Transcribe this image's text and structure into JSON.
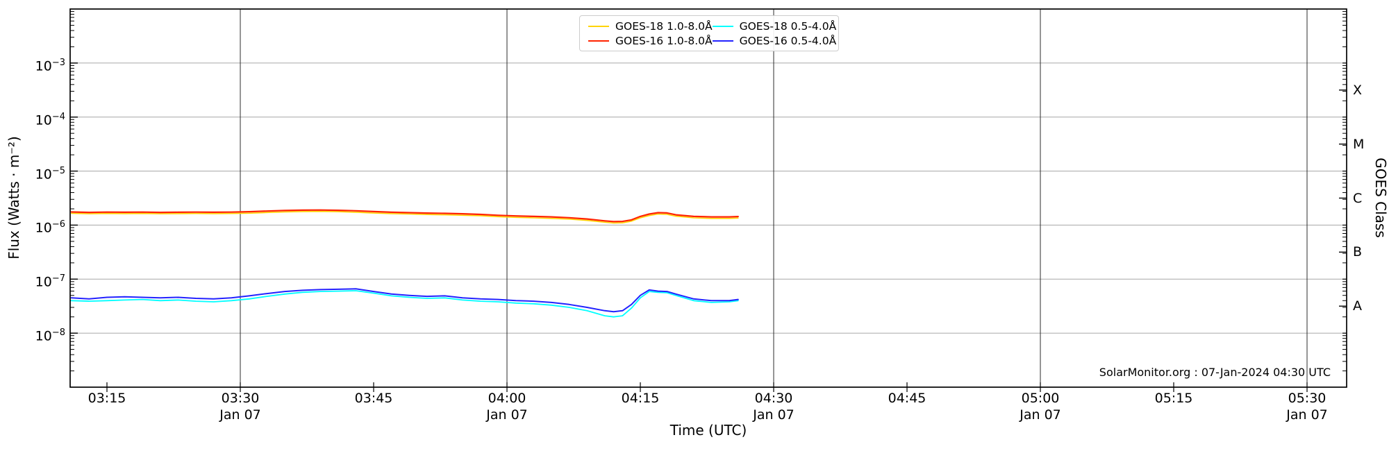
{
  "chart_data": {
    "type": "line",
    "title": "",
    "xlabel": "Time (UTC)",
    "ylabel": "Flux (Watts · m⁻²)",
    "ylabel_right": "GOES Class",
    "annotation": "SolarMonitor.org : 07-Jan-2024 04:30 UTC",
    "date_label": "Jan 07",
    "grid": {
      "h_color": "#b0b0b0",
      "v_color": "#2b2b2b"
    },
    "x_range_minutes_utc": [
      190.9,
      334.4
    ],
    "y_range": [
      1e-09,
      0.01
    ],
    "y_tick_exponents": [
      -3,
      -4,
      -5,
      -6,
      -7,
      -8
    ],
    "x_ticks": [
      {
        "t": 195,
        "label": "03:15"
      },
      {
        "t": 210,
        "label": "03:30",
        "sub": "Jan 07"
      },
      {
        "t": 225,
        "label": "03:45"
      },
      {
        "t": 240,
        "label": "04:00",
        "sub": "Jan 07"
      },
      {
        "t": 255,
        "label": "04:15"
      },
      {
        "t": 270,
        "label": "04:30",
        "sub": "Jan 07"
      },
      {
        "t": 285,
        "label": "04:45"
      },
      {
        "t": 300,
        "label": "05:00",
        "sub": "Jan 07"
      },
      {
        "t": 315,
        "label": "05:15"
      },
      {
        "t": 330,
        "label": "05:30",
        "sub": "Jan 07"
      }
    ],
    "v_gridline_times": [
      210,
      240,
      270,
      300,
      330
    ],
    "goes_class_labels": [
      {
        "label": "X",
        "log_center": -3.5
      },
      {
        "label": "M",
        "log_center": -4.5
      },
      {
        "label": "C",
        "log_center": -5.5
      },
      {
        "label": "B",
        "log_center": -6.5
      },
      {
        "label": "A",
        "log_center": -7.5
      }
    ],
    "t_minutes_utc": [
      191,
      193,
      195,
      197,
      199,
      201,
      203,
      205,
      207,
      209,
      211,
      213,
      215,
      217,
      219,
      221,
      223,
      225,
      227,
      229,
      231,
      233,
      235,
      237,
      239,
      241,
      243,
      245,
      247,
      249,
      251,
      252,
      253,
      254,
      255,
      256,
      257,
      258,
      259,
      261,
      263,
      265,
      266
    ],
    "series": [
      {
        "name": "GOES-18 1.0-8.0Å",
        "color": "#ffd400",
        "width": 1.6,
        "values": [
          1.65e-06,
          1.62e-06,
          1.64e-06,
          1.63e-06,
          1.64e-06,
          1.62e-06,
          1.63e-06,
          1.64e-06,
          1.63e-06,
          1.64e-06,
          1.66e-06,
          1.71e-06,
          1.75e-06,
          1.78e-06,
          1.79e-06,
          1.77e-06,
          1.73e-06,
          1.67e-06,
          1.63e-06,
          1.6e-06,
          1.57e-06,
          1.55e-06,
          1.52e-06,
          1.49e-06,
          1.43e-06,
          1.39e-06,
          1.36e-06,
          1.33e-06,
          1.29e-06,
          1.22e-06,
          1.13e-06,
          1.09e-06,
          1.1e-06,
          1.18e-06,
          1.36e-06,
          1.5e-06,
          1.6e-06,
          1.58e-06,
          1.46e-06,
          1.36e-06,
          1.33e-06,
          1.33e-06,
          1.35e-06
        ]
      },
      {
        "name": "GOES-16 1.0-8.0Å",
        "color": "#ff2200",
        "width": 2.2,
        "values": [
          1.75e-06,
          1.72e-06,
          1.74e-06,
          1.73e-06,
          1.74e-06,
          1.72e-06,
          1.73e-06,
          1.74e-06,
          1.73e-06,
          1.74e-06,
          1.77e-06,
          1.82e-06,
          1.86e-06,
          1.89e-06,
          1.9e-06,
          1.88e-06,
          1.84e-06,
          1.78e-06,
          1.73e-06,
          1.7e-06,
          1.67e-06,
          1.65e-06,
          1.62e-06,
          1.58e-06,
          1.52e-06,
          1.48e-06,
          1.45e-06,
          1.42e-06,
          1.37e-06,
          1.3e-06,
          1.2e-06,
          1.16e-06,
          1.17e-06,
          1.25e-06,
          1.45e-06,
          1.6e-06,
          1.7e-06,
          1.68e-06,
          1.55e-06,
          1.45e-06,
          1.42e-06,
          1.42e-06,
          1.44e-06
        ]
      },
      {
        "name": "GOES-18 0.5-4.0Å",
        "color": "#00ffff",
        "width": 1.8,
        "values": [
          4e-08,
          3.9e-08,
          4e-08,
          4.1e-08,
          4.2e-08,
          4e-08,
          4.1e-08,
          3.9e-08,
          3.8e-08,
          4e-08,
          4.3e-08,
          4.8e-08,
          5.3e-08,
          5.7e-08,
          5.9e-08,
          6e-08,
          6.1e-08,
          5.5e-08,
          4.9e-08,
          4.6e-08,
          4.4e-08,
          4.5e-08,
          4.1e-08,
          3.9e-08,
          3.8e-08,
          3.6e-08,
          3.5e-08,
          3.3e-08,
          3e-08,
          2.6e-08,
          2.1e-08,
          2e-08,
          2.1e-08,
          2.9e-08,
          4.5e-08,
          5.9e-08,
          5.7e-08,
          5.6e-08,
          5e-08,
          4e-08,
          3.7e-08,
          3.8e-08,
          4e-08
        ]
      },
      {
        "name": "GOES-16 0.5-4.0Å",
        "color": "#2222ff",
        "width": 2.0,
        "values": [
          4.5e-08,
          4.3e-08,
          4.6e-08,
          4.7e-08,
          4.6e-08,
          4.5e-08,
          4.6e-08,
          4.4e-08,
          4.3e-08,
          4.5e-08,
          4.9e-08,
          5.4e-08,
          5.9e-08,
          6.2e-08,
          6.4e-08,
          6.5e-08,
          6.6e-08,
          5.9e-08,
          5.3e-08,
          5e-08,
          4.8e-08,
          4.9e-08,
          4.5e-08,
          4.3e-08,
          4.2e-08,
          4e-08,
          3.9e-08,
          3.7e-08,
          3.4e-08,
          3e-08,
          2.6e-08,
          2.5e-08,
          2.6e-08,
          3.4e-08,
          5e-08,
          6.3e-08,
          6e-08,
          5.9e-08,
          5.3e-08,
          4.3e-08,
          4e-08,
          4e-08,
          4.2e-08
        ]
      }
    ],
    "legend": {
      "position": "top-center",
      "columns": 2,
      "order": [
        0,
        1,
        2,
        3
      ]
    }
  }
}
